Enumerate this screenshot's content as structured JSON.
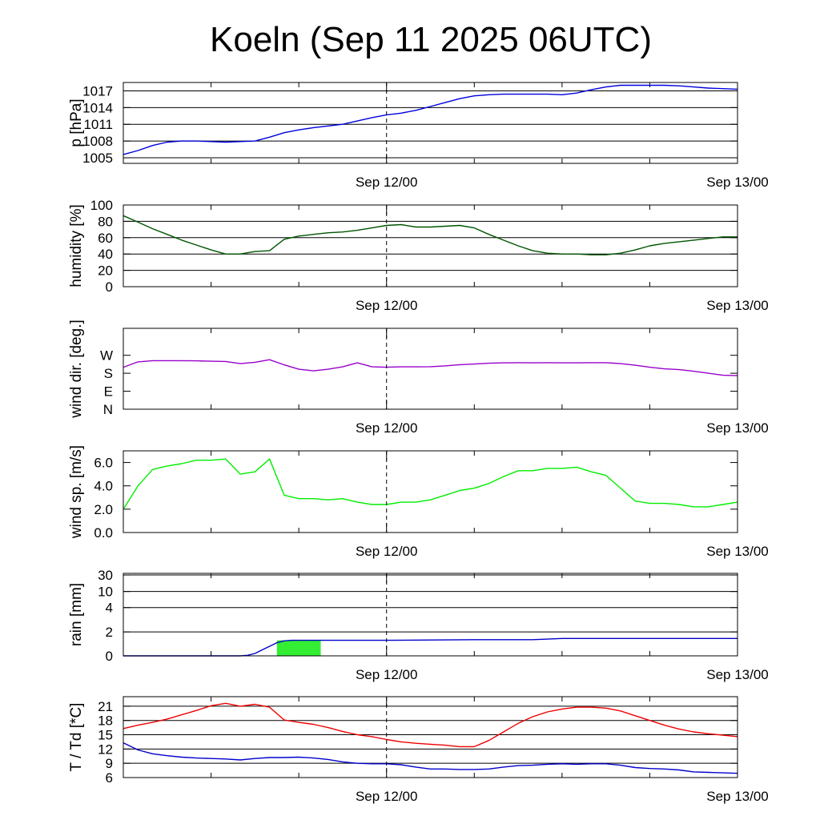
{
  "title": "Koeln (Sep 11 2025 06UTC)",
  "x_axis": {
    "start": "2025-09-11 06:00",
    "end": "2025-09-13 00:00",
    "tick_labels": [
      "Sep 12/00",
      "Sep 13/00"
    ],
    "minor_ticks_every_hours": 6,
    "marker_line": "2025-09-12 00:00"
  },
  "chart_data": [
    {
      "type": "line",
      "ylabel": "p [hPa]",
      "ylim": [
        1004,
        1018.5
      ],
      "yticks": [
        1005,
        1008,
        1011,
        1014,
        1017
      ],
      "yticklabels": [
        "1005",
        "1008",
        "1011",
        "1014",
        "1017"
      ],
      "grid": true,
      "series": [
        {
          "color": "#0000dd",
          "x_hours_from_start": [
            0,
            1,
            2,
            3,
            4,
            5,
            6,
            7,
            8,
            9,
            10,
            11,
            12,
            13,
            14,
            15,
            16,
            17,
            18,
            19,
            20,
            21,
            22,
            23,
            24,
            25,
            26,
            27,
            28,
            29,
            30,
            31,
            32,
            33,
            34,
            35,
            36,
            37,
            38,
            39,
            40,
            41,
            42
          ],
          "values": [
            1005.6,
            1006.3,
            1007.2,
            1007.8,
            1008.0,
            1008.0,
            1007.9,
            1007.8,
            1007.9,
            1008.0,
            1008.7,
            1009.5,
            1010.0,
            1010.4,
            1010.7,
            1011.0,
            1011.6,
            1012.2,
            1012.7,
            1013.0,
            1013.5,
            1014.2,
            1014.9,
            1015.6,
            1016.1,
            1016.3,
            1016.4,
            1016.4,
            1016.4,
            1016.4,
            1016.3,
            1016.6,
            1017.2,
            1017.7,
            1018.0,
            1018.0,
            1018.0,
            1018.0,
            1017.9,
            1017.7,
            1017.5,
            1017.4,
            1017.3
          ]
        }
      ]
    },
    {
      "type": "line",
      "ylabel": "humidity [%]",
      "ylim": [
        0,
        100
      ],
      "yticks": [
        0,
        20,
        40,
        60,
        80,
        100
      ],
      "yticklabels": [
        "0",
        "20",
        "40",
        "60",
        "80",
        "100"
      ],
      "grid": true,
      "series": [
        {
          "color": "#005500",
          "x_hours_from_start": [
            0,
            1,
            2,
            3,
            4,
            5,
            6,
            7,
            8,
            9,
            10,
            11,
            12,
            13,
            14,
            15,
            16,
            17,
            18,
            19,
            20,
            21,
            22,
            23,
            24,
            25,
            26,
            27,
            28,
            29,
            30,
            31,
            32,
            33,
            34,
            35,
            36,
            37,
            38,
            39,
            40,
            41,
            42
          ],
          "values": [
            87,
            79,
            71,
            64,
            57,
            51,
            45,
            40,
            40,
            43,
            44,
            58,
            62,
            64,
            66,
            67,
            69,
            72,
            75,
            76,
            73,
            73,
            74,
            75,
            72,
            64,
            57,
            50,
            44,
            41,
            40,
            40,
            39,
            39,
            41,
            45,
            50,
            53,
            55,
            57,
            59,
            61,
            61
          ]
        }
      ]
    },
    {
      "type": "line",
      "ylabel": "wind dir. [deg.]",
      "ylim": [
        0,
        405
      ],
      "yticks": [
        0,
        90,
        180,
        270
      ],
      "yticklabels": [
        "N",
        "E",
        "S",
        "W"
      ],
      "grid": false,
      "series": [
        {
          "color": "#9900cc",
          "x_hours_from_start": [
            0,
            1,
            2,
            3,
            4,
            5,
            6,
            7,
            8,
            9,
            10,
            11,
            12,
            13,
            14,
            15,
            16,
            17,
            18,
            19,
            20,
            21,
            22,
            23,
            24,
            25,
            26,
            27,
            28,
            29,
            30,
            31,
            32,
            33,
            34,
            35,
            36,
            37,
            38,
            39,
            40,
            41,
            42
          ],
          "values": [
            210,
            237,
            243,
            243,
            243,
            242,
            240,
            239,
            228,
            235,
            248,
            222,
            200,
            192,
            200,
            212,
            232,
            212,
            210,
            212,
            212,
            213,
            217,
            223,
            226,
            230,
            232,
            233,
            232,
            233,
            232,
            232,
            233,
            233,
            228,
            220,
            210,
            202,
            198,
            190,
            180,
            170,
            168
          ]
        }
      ]
    },
    {
      "type": "line",
      "ylabel": "wind sp. [m/s]",
      "ylim": [
        0,
        7
      ],
      "yticks": [
        0,
        2,
        4,
        6
      ],
      "yticklabels": [
        "0.0",
        "2.0",
        "4.0",
        "6.0"
      ],
      "grid": false,
      "series": [
        {
          "color": "#00ee00",
          "x_hours_from_start": [
            0,
            1,
            2,
            3,
            4,
            5,
            6,
            7,
            8,
            9,
            10,
            11,
            12,
            13,
            14,
            15,
            16,
            17,
            18,
            19,
            20,
            21,
            22,
            23,
            24,
            25,
            26,
            27,
            28,
            29,
            30,
            31,
            32,
            33,
            34,
            35,
            36,
            37,
            38,
            39,
            40,
            41,
            42
          ],
          "values": [
            2.0,
            4.0,
            5.4,
            5.7,
            5.9,
            6.2,
            6.2,
            6.3,
            5.0,
            5.2,
            6.3,
            3.2,
            2.9,
            2.9,
            2.8,
            2.9,
            2.6,
            2.4,
            2.4,
            2.6,
            2.6,
            2.8,
            3.2,
            3.6,
            3.8,
            4.2,
            4.8,
            5.3,
            5.3,
            5.5,
            5.5,
            5.6,
            5.2,
            4.9,
            3.8,
            2.7,
            2.5,
            2.5,
            2.4,
            2.2,
            2.2,
            2.4,
            2.6
          ]
        }
      ]
    },
    {
      "type": "bar+line",
      "ylabel": "rain [mm]",
      "yticks": [
        0,
        2,
        4,
        10,
        30
      ],
      "yticklabels": [
        "0",
        "2",
        "4",
        "10",
        "30"
      ],
      "grid": true,
      "bars": {
        "color": "#33ee33",
        "intervals_hours_from_start": [
          [
            10.5,
            13.5
          ]
        ],
        "values": [
          1.3
        ]
      },
      "series": [
        {
          "color": "#0000cc",
          "x_hours_from_start": [
            0,
            8,
            8.5,
            9,
            9.5,
            10,
            10.5,
            11,
            11.5,
            12,
            13,
            18,
            24,
            28,
            30,
            34,
            42
          ],
          "values": [
            0,
            0,
            0.05,
            0.2,
            0.5,
            0.8,
            1.1,
            1.25,
            1.3,
            1.3,
            1.3,
            1.3,
            1.35,
            1.35,
            1.45,
            1.45,
            1.45
          ]
        }
      ]
    },
    {
      "type": "line",
      "ylabel": "T / Td [*C]",
      "ylim": [
        6,
        23
      ],
      "yticks": [
        6,
        9,
        12,
        15,
        18,
        21
      ],
      "yticklabels": [
        "6",
        "9",
        "12",
        "15",
        "18",
        "21"
      ],
      "grid": true,
      "series": [
        {
          "color": "#ee0000",
          "x_hours_from_start": [
            0,
            1,
            2,
            3,
            4,
            5,
            6,
            7,
            8,
            9,
            10,
            11,
            12,
            13,
            14,
            15,
            16,
            17,
            18,
            19,
            20,
            21,
            22,
            23,
            24,
            25,
            26,
            27,
            28,
            29,
            30,
            31,
            32,
            33,
            34,
            35,
            36,
            37,
            38,
            39,
            40,
            41,
            42
          ],
          "values": [
            16.3,
            17.0,
            17.6,
            18.3,
            19.2,
            20.1,
            21.1,
            21.6,
            21.0,
            21.4,
            20.8,
            18.1,
            17.6,
            17.2,
            16.5,
            15.7,
            15.0,
            14.6,
            14.0,
            13.5,
            13.2,
            13.0,
            12.8,
            12.5,
            12.5,
            13.8,
            15.6,
            17.4,
            18.8,
            19.8,
            20.4,
            20.8,
            20.8,
            20.6,
            20.0,
            19.0,
            18.0,
            17.0,
            16.2,
            15.6,
            15.2,
            14.9,
            14.6
          ]
        },
        {
          "color": "#0000cc",
          "x_hours_from_start": [
            0,
            1,
            2,
            3,
            4,
            5,
            6,
            7,
            8,
            9,
            10,
            11,
            12,
            13,
            14,
            15,
            16,
            17,
            18,
            19,
            20,
            21,
            22,
            23,
            24,
            25,
            26,
            27,
            28,
            29,
            30,
            31,
            32,
            33,
            34,
            35,
            36,
            37,
            38,
            39,
            40,
            41,
            42
          ],
          "values": [
            13.3,
            11.8,
            11.0,
            10.6,
            10.3,
            10.1,
            10.0,
            9.9,
            9.7,
            10.0,
            10.2,
            10.2,
            10.3,
            10.1,
            9.8,
            9.3,
            9.0,
            8.9,
            8.9,
            8.7,
            8.2,
            7.8,
            7.8,
            7.7,
            7.7,
            7.8,
            8.2,
            8.5,
            8.6,
            8.8,
            8.9,
            8.8,
            8.9,
            8.9,
            8.6,
            8.1,
            7.9,
            7.8,
            7.6,
            7.2,
            7.1,
            7.0,
            6.9
          ]
        }
      ]
    }
  ]
}
